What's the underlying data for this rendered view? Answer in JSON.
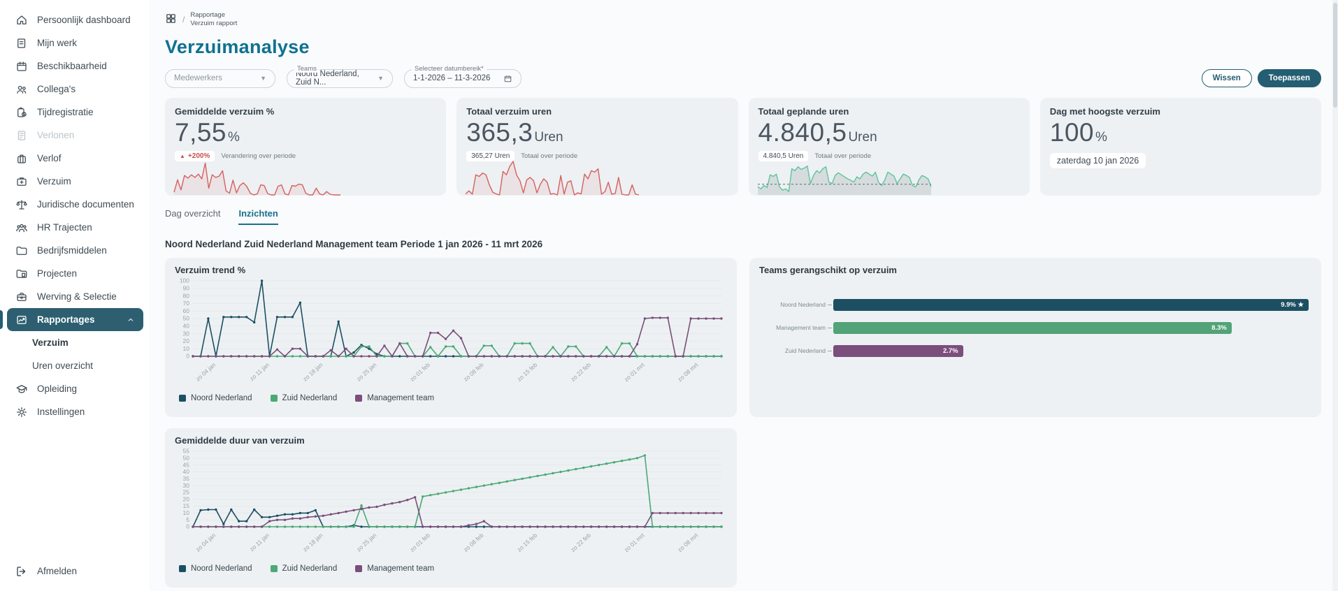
{
  "colors": {
    "accent": "#0f7191",
    "dark_teal": "#235e72",
    "noord": "#1d4f63",
    "zuid": "#4ca878",
    "management": "#7b4e7b",
    "negative_red": "#cf4b4b",
    "spark_red": "#d66060",
    "spark_green": "#5ec497",
    "panel_bg": "#edf1f3"
  },
  "sidebar": {
    "items": [
      {
        "label": "Persoonlijk dashboard",
        "icon": "home-icon"
      },
      {
        "label": "Mijn werk",
        "icon": "document-icon"
      },
      {
        "label": "Beschikbaarheid",
        "icon": "calendar-icon"
      },
      {
        "label": "Collega's",
        "icon": "people-icon"
      },
      {
        "label": "Tijdregistratie",
        "icon": "clipboard-clock-icon"
      },
      {
        "label": "Verlonen",
        "icon": "payroll-icon",
        "disabled": true
      },
      {
        "label": "Verlof",
        "icon": "suitcase-icon"
      },
      {
        "label": "Verzuim",
        "icon": "first-aid-icon"
      },
      {
        "label": "Juridische documenten",
        "icon": "scales-icon"
      },
      {
        "label": "HR Trajecten",
        "icon": "team-icon"
      },
      {
        "label": "Bedrijfsmiddelen",
        "icon": "folder-icon"
      },
      {
        "label": "Projecten",
        "icon": "project-folder-icon"
      },
      {
        "label": "Werving & Selectie",
        "icon": "briefcase-icon"
      },
      {
        "label": "Rapportages",
        "icon": "report-chart-icon",
        "active": true,
        "expanded": true
      },
      {
        "label": "Verzuim",
        "sub": true,
        "selected": true
      },
      {
        "label": "Uren overzicht",
        "sub": true
      },
      {
        "label": "Opleiding",
        "icon": "graduation-cap-icon"
      },
      {
        "label": "Instellingen",
        "icon": "gear-icon"
      }
    ],
    "logout_label": "Afmelden"
  },
  "breadcrumb": {
    "section": "Rapportage",
    "page": "Verzuim rapport"
  },
  "header": {
    "title": "Verzuimanalyse"
  },
  "filters": {
    "medewerkers_placeholder": "Medewerkers",
    "teams_label": "Teams",
    "teams_value": "Noord Nederland, Zuid N...",
    "daterange_label": "Selecteer datumbereik*",
    "daterange_value": "1-1-2026  – 11-3-2026",
    "clear_label": "Wissen",
    "apply_label": "Toepassen"
  },
  "kpis": [
    {
      "title": "Gemiddelde verzuim %",
      "value": "7,55",
      "unit": "%",
      "badge": "+200%",
      "badge_note": "Verandering over periode",
      "spark_color": "#d66060",
      "spark": [
        8,
        45,
        15,
        58,
        50,
        60,
        52,
        62,
        48,
        95,
        20,
        60,
        52,
        56,
        72,
        12,
        5,
        44,
        6,
        28,
        36,
        25,
        5,
        0,
        3,
        30,
        28,
        4,
        0,
        0,
        26,
        30,
        3,
        0,
        28,
        26,
        32,
        30,
        5,
        0,
        0,
        20,
        3,
        0,
        10,
        2,
        0,
        0,
        0
      ]
    },
    {
      "title": "Totaal verzuim uren",
      "value": "365,3",
      "unit": "Uren",
      "badge": "365,27 Uren",
      "badge_note": "Totaal over periode",
      "spark_color": "#d66060",
      "spark": [
        3,
        12,
        2,
        60,
        55,
        65,
        60,
        30,
        8,
        3,
        0,
        70,
        60,
        85,
        100,
        60,
        42,
        6,
        45,
        52,
        42,
        6,
        32,
        48,
        38,
        2,
        4,
        0,
        58,
        2,
        38,
        42,
        0,
        6,
        3,
        62,
        48,
        72,
        68,
        78,
        2,
        10,
        38,
        2,
        4,
        52,
        2,
        0,
        0,
        30,
        2,
        0
      ]
    },
    {
      "title": "Totaal geplande uren",
      "value": "4.840,5",
      "unit": "Uren",
      "badge": "4.840,5 Uren",
      "badge_note": "Totaal over periode",
      "spark_color": "#5ec497",
      "avg_line": true,
      "spark": [
        25,
        18,
        28,
        22,
        60,
        55,
        62,
        24,
        14,
        18,
        10,
        78,
        72,
        84,
        76,
        80,
        86,
        34,
        58,
        72,
        66,
        78,
        84,
        38,
        34,
        58,
        66,
        60,
        54,
        48,
        44,
        38,
        54,
        48,
        62,
        68,
        62,
        56,
        68,
        38,
        28,
        44,
        68,
        62,
        56,
        34,
        48,
        62,
        58,
        52,
        28,
        24,
        44,
        58,
        54,
        48,
        24
      ]
    },
    {
      "title": "Dag met hoogste verzuim",
      "value": "100",
      "unit": "%",
      "badge": "zaterdag 10 jan 2026"
    }
  ],
  "tabs": [
    {
      "label": "Dag overzicht"
    },
    {
      "label": "Inzichten",
      "active": true
    }
  ],
  "section_title": "Noord Nederland Zuid Nederland Management team Periode 1 jan 2026 - 11 mrt 2026",
  "chart_data": [
    {
      "type": "line",
      "title": "Verzuim trend %",
      "ylim": [
        0,
        100
      ],
      "y_step": 10,
      "n_points": 70,
      "grid": true,
      "legend_position": "bottom",
      "x_tick_labels": [
        "zo 04 jan",
        "zo 11 jan",
        "zo 18 jan",
        "zo 25 jan",
        "zo 01 feb",
        "zo 08 feb",
        "zo 15 feb",
        "zo 22 feb",
        "zo 01 mrt",
        "zo 08 mrt"
      ],
      "x_tick_positions": [
        3,
        10,
        17,
        24,
        31,
        38,
        45,
        52,
        59,
        66
      ],
      "series": [
        {
          "name": "Noord Nederland",
          "color": "#1d4f63",
          "values": [
            0,
            0,
            50,
            0,
            52,
            52,
            52,
            52,
            45,
            100,
            0,
            52,
            52,
            52,
            71,
            0,
            0,
            0,
            0,
            46,
            0,
            5,
            15,
            10,
            3,
            0,
            0,
            0,
            0,
            0,
            0,
            0,
            0,
            0,
            0,
            0,
            0,
            0,
            0,
            0,
            0,
            0,
            0,
            0,
            0,
            0,
            0,
            0,
            0,
            0,
            0,
            0,
            0,
            0,
            0,
            0,
            0,
            0,
            0,
            0,
            0,
            0,
            0,
            0,
            0,
            0,
            0,
            0,
            0,
            0
          ]
        },
        {
          "name": "Zuid Nederland",
          "color": "#4ca878",
          "values": [
            0,
            0,
            0,
            0,
            0,
            0,
            0,
            0,
            0,
            0,
            0,
            0,
            0,
            0,
            0,
            0,
            0,
            0,
            0,
            0,
            0,
            0,
            13,
            13,
            0,
            0,
            0,
            17,
            17,
            0,
            0,
            12,
            0,
            13,
            13,
            0,
            0,
            0,
            14,
            14,
            0,
            0,
            17,
            17,
            17,
            0,
            0,
            12,
            0,
            13,
            13,
            0,
            0,
            0,
            12,
            0,
            17,
            17,
            0,
            0,
            0,
            0,
            0,
            0,
            0,
            0,
            0,
            0,
            0,
            0
          ]
        },
        {
          "name": "Management team",
          "color": "#7b4e7b",
          "values": [
            0,
            0,
            0,
            0,
            0,
            0,
            0,
            0,
            0,
            0,
            0,
            9,
            0,
            10,
            10,
            0,
            0,
            0,
            8,
            0,
            10,
            0,
            0,
            0,
            0,
            14,
            0,
            17,
            0,
            0,
            0,
            31,
            31,
            23,
            34,
            24,
            0,
            0,
            0,
            0,
            0,
            0,
            0,
            0,
            0,
            0,
            0,
            0,
            0,
            0,
            0,
            0,
            0,
            0,
            0,
            0,
            0,
            0,
            16,
            50,
            51,
            51,
            51,
            0,
            0,
            50,
            50,
            50,
            50,
            50
          ]
        }
      ]
    },
    {
      "type": "bar",
      "orientation": "horizontal",
      "title": "Teams gerangschikt op verzuim",
      "categories": [
        "Noord Nederland",
        "Management team",
        "Zuid Nederland"
      ],
      "values": [
        9.9,
        8.3,
        2.7
      ],
      "labels": [
        "9.9% ★",
        "8.3%",
        "2.7%"
      ],
      "colors": [
        "#1d4f63",
        "#52a377",
        "#7b4e7b"
      ],
      "xlim": [
        0,
        9.9
      ]
    },
    {
      "type": "line",
      "title": "Gemiddelde duur van verzuim",
      "ylim": [
        0,
        55
      ],
      "y_step": 5,
      "n_points": 70,
      "grid": true,
      "legend_position": "bottom",
      "x_tick_labels": [
        "zo 04 jan",
        "zo 11 jan",
        "zo 18 jan",
        "zo 25 jan",
        "zo 01 feb",
        "zo 08 feb",
        "zo 15 feb",
        "zo 22 feb",
        "zo 01 mrt",
        "zo 08 mrt"
      ],
      "x_tick_positions": [
        3,
        10,
        17,
        24,
        31,
        38,
        45,
        52,
        59,
        66
      ],
      "series": [
        {
          "name": "Noord Nederland",
          "color": "#1d4f63",
          "values": [
            0,
            12,
            12.5,
            12.5,
            2,
            12.5,
            4,
            4,
            12.5,
            7,
            7,
            8,
            9,
            9,
            10,
            10,
            12,
            0,
            0,
            0,
            0,
            1,
            0,
            0,
            0,
            0,
            0,
            0,
            0,
            0,
            0,
            0,
            0,
            0,
            0,
            0,
            0,
            0,
            0,
            0,
            0,
            0,
            0,
            0,
            0,
            0,
            0,
            0,
            0,
            0,
            0,
            0,
            0,
            0,
            0,
            0,
            0,
            0,
            0,
            0,
            0,
            0,
            0,
            0,
            0,
            0,
            0,
            0,
            0,
            0
          ]
        },
        {
          "name": "Zuid Nederland",
          "color": "#4ca878",
          "values": [
            0,
            0,
            0,
            0,
            0,
            0,
            0,
            0,
            0,
            0,
            0,
            0,
            0,
            0,
            0,
            0,
            0,
            0,
            0,
            0,
            0,
            0,
            15.5,
            0,
            0,
            0,
            0,
            0,
            0,
            0,
            22,
            23,
            24,
            25,
            26,
            27,
            28,
            29,
            30,
            31,
            32,
            33,
            34,
            35,
            36,
            37,
            38,
            39,
            40,
            41,
            42,
            43,
            44,
            45,
            46,
            47,
            48,
            49,
            50,
            52,
            0,
            0,
            0,
            0,
            0,
            0,
            0,
            0,
            0,
            0
          ]
        },
        {
          "name": "Management team",
          "color": "#7b4e7b",
          "values": [
            0,
            0,
            0,
            0,
            0,
            0,
            0,
            0,
            0,
            0,
            4,
            5,
            5,
            6,
            6,
            7,
            7.5,
            8,
            9,
            10,
            11,
            12,
            13,
            14,
            14.5,
            16,
            17,
            18,
            19.5,
            21.5,
            0,
            0,
            0,
            0,
            0,
            0,
            1,
            2,
            4,
            0,
            0,
            0,
            0,
            0,
            0,
            0,
            0,
            0,
            0,
            0,
            0,
            0,
            0,
            0,
            0,
            0,
            0,
            0,
            0,
            0,
            10,
            10,
            10,
            10,
            10,
            10,
            10,
            10,
            10,
            10
          ]
        }
      ]
    }
  ]
}
